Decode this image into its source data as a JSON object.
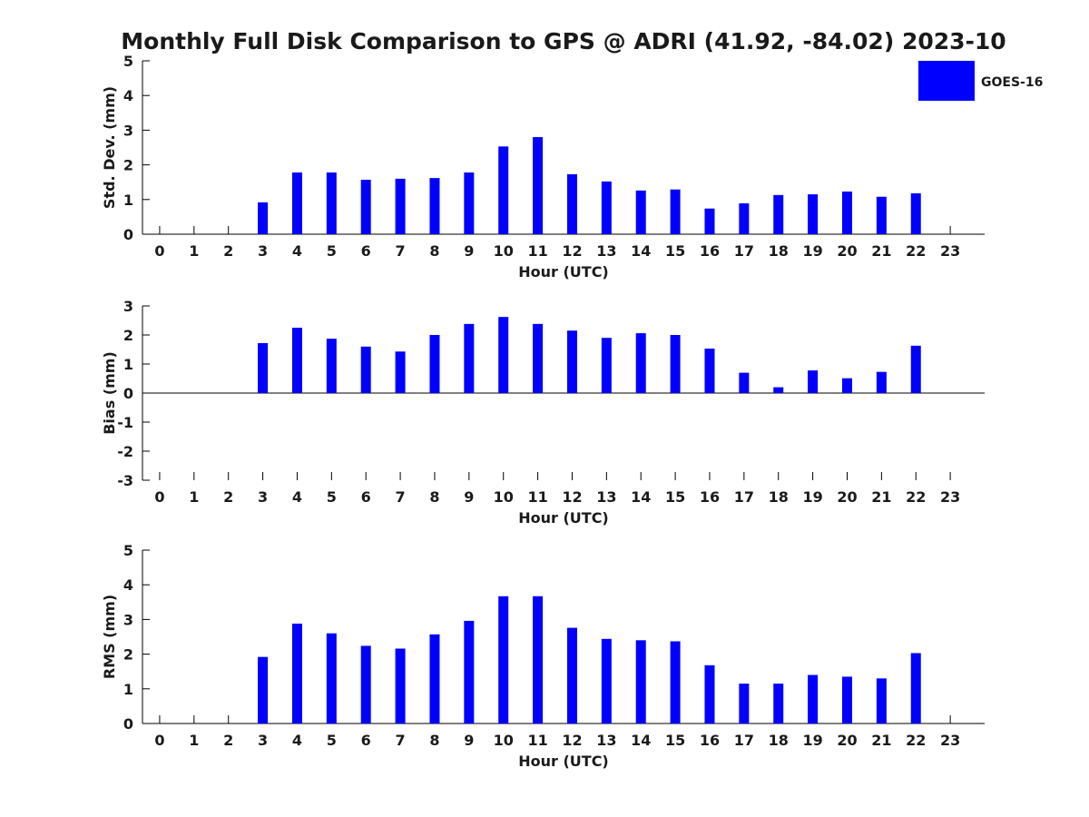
{
  "title": "Monthly Full Disk Comparison to GPS @ ADRI (41.92, -84.02) 2023-10",
  "legend": {
    "label": "GOES-16",
    "color": "#0000ff",
    "placement": "top-right"
  },
  "chart_data": [
    {
      "type": "bar",
      "ylabel": "Std. Dev. (mm)",
      "xlabel": "Hour (UTC)",
      "ylim": [
        0,
        5
      ],
      "yticks": [
        "0",
        "1",
        "2",
        "3",
        "4",
        "5"
      ],
      "categories": [
        "0",
        "1",
        "2",
        "3",
        "4",
        "5",
        "6",
        "7",
        "8",
        "9",
        "10",
        "11",
        "12",
        "13",
        "14",
        "15",
        "16",
        "17",
        "18",
        "19",
        "20",
        "21",
        "22",
        "23"
      ],
      "series": [
        {
          "name": "GOES-16",
          "values": [
            null,
            null,
            null,
            0.92,
            1.78,
            1.78,
            1.57,
            1.6,
            1.62,
            1.78,
            2.53,
            2.8,
            1.73,
            1.52,
            1.26,
            1.29,
            0.74,
            0.89,
            1.13,
            1.15,
            1.23,
            1.08,
            1.18,
            null
          ]
        }
      ],
      "color": "#0000ff"
    },
    {
      "type": "bar",
      "ylabel": "Bias (mm)",
      "xlabel": "Hour (UTC)",
      "ylim": [
        -3,
        3
      ],
      "yticks": [
        "-3",
        "-2",
        "-1",
        "0",
        "1",
        "2",
        "3"
      ],
      "categories": [
        "0",
        "1",
        "2",
        "3",
        "4",
        "5",
        "6",
        "7",
        "8",
        "9",
        "10",
        "11",
        "12",
        "13",
        "14",
        "15",
        "16",
        "17",
        "18",
        "19",
        "20",
        "21",
        "22",
        "23"
      ],
      "series": [
        {
          "name": "GOES-16",
          "values": [
            null,
            null,
            null,
            1.72,
            2.25,
            1.87,
            1.6,
            1.43,
            2.0,
            2.38,
            2.62,
            2.38,
            2.15,
            1.9,
            2.06,
            2.0,
            1.53,
            0.7,
            0.2,
            0.78,
            0.51,
            0.73,
            1.63,
            null
          ]
        }
      ],
      "color": "#0000ff"
    },
    {
      "type": "bar",
      "ylabel": "RMS (mm)",
      "xlabel": "Hour (UTC)",
      "ylim": [
        0,
        5
      ],
      "yticks": [
        "0",
        "1",
        "2",
        "3",
        "4",
        "5"
      ],
      "categories": [
        "0",
        "1",
        "2",
        "3",
        "4",
        "5",
        "6",
        "7",
        "8",
        "9",
        "10",
        "11",
        "12",
        "13",
        "14",
        "15",
        "16",
        "17",
        "18",
        "19",
        "20",
        "21",
        "22",
        "23"
      ],
      "series": [
        {
          "name": "GOES-16",
          "values": [
            null,
            null,
            null,
            1.92,
            2.88,
            2.6,
            2.24,
            2.16,
            2.57,
            2.96,
            3.67,
            3.67,
            2.76,
            2.44,
            2.4,
            2.37,
            1.68,
            1.15,
            1.15,
            1.4,
            1.35,
            1.3,
            2.03,
            null
          ]
        }
      ],
      "color": "#0000ff"
    }
  ]
}
